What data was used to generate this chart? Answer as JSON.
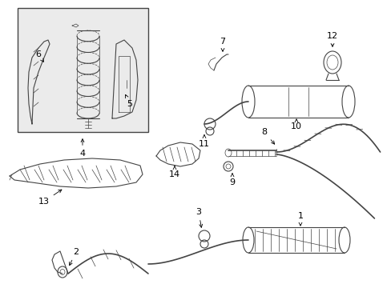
{
  "bg_color": "#ffffff",
  "line_color": "#444444",
  "box_bg": "#ebebeb",
  "fig_width": 4.89,
  "fig_height": 3.6,
  "dpi": 100
}
